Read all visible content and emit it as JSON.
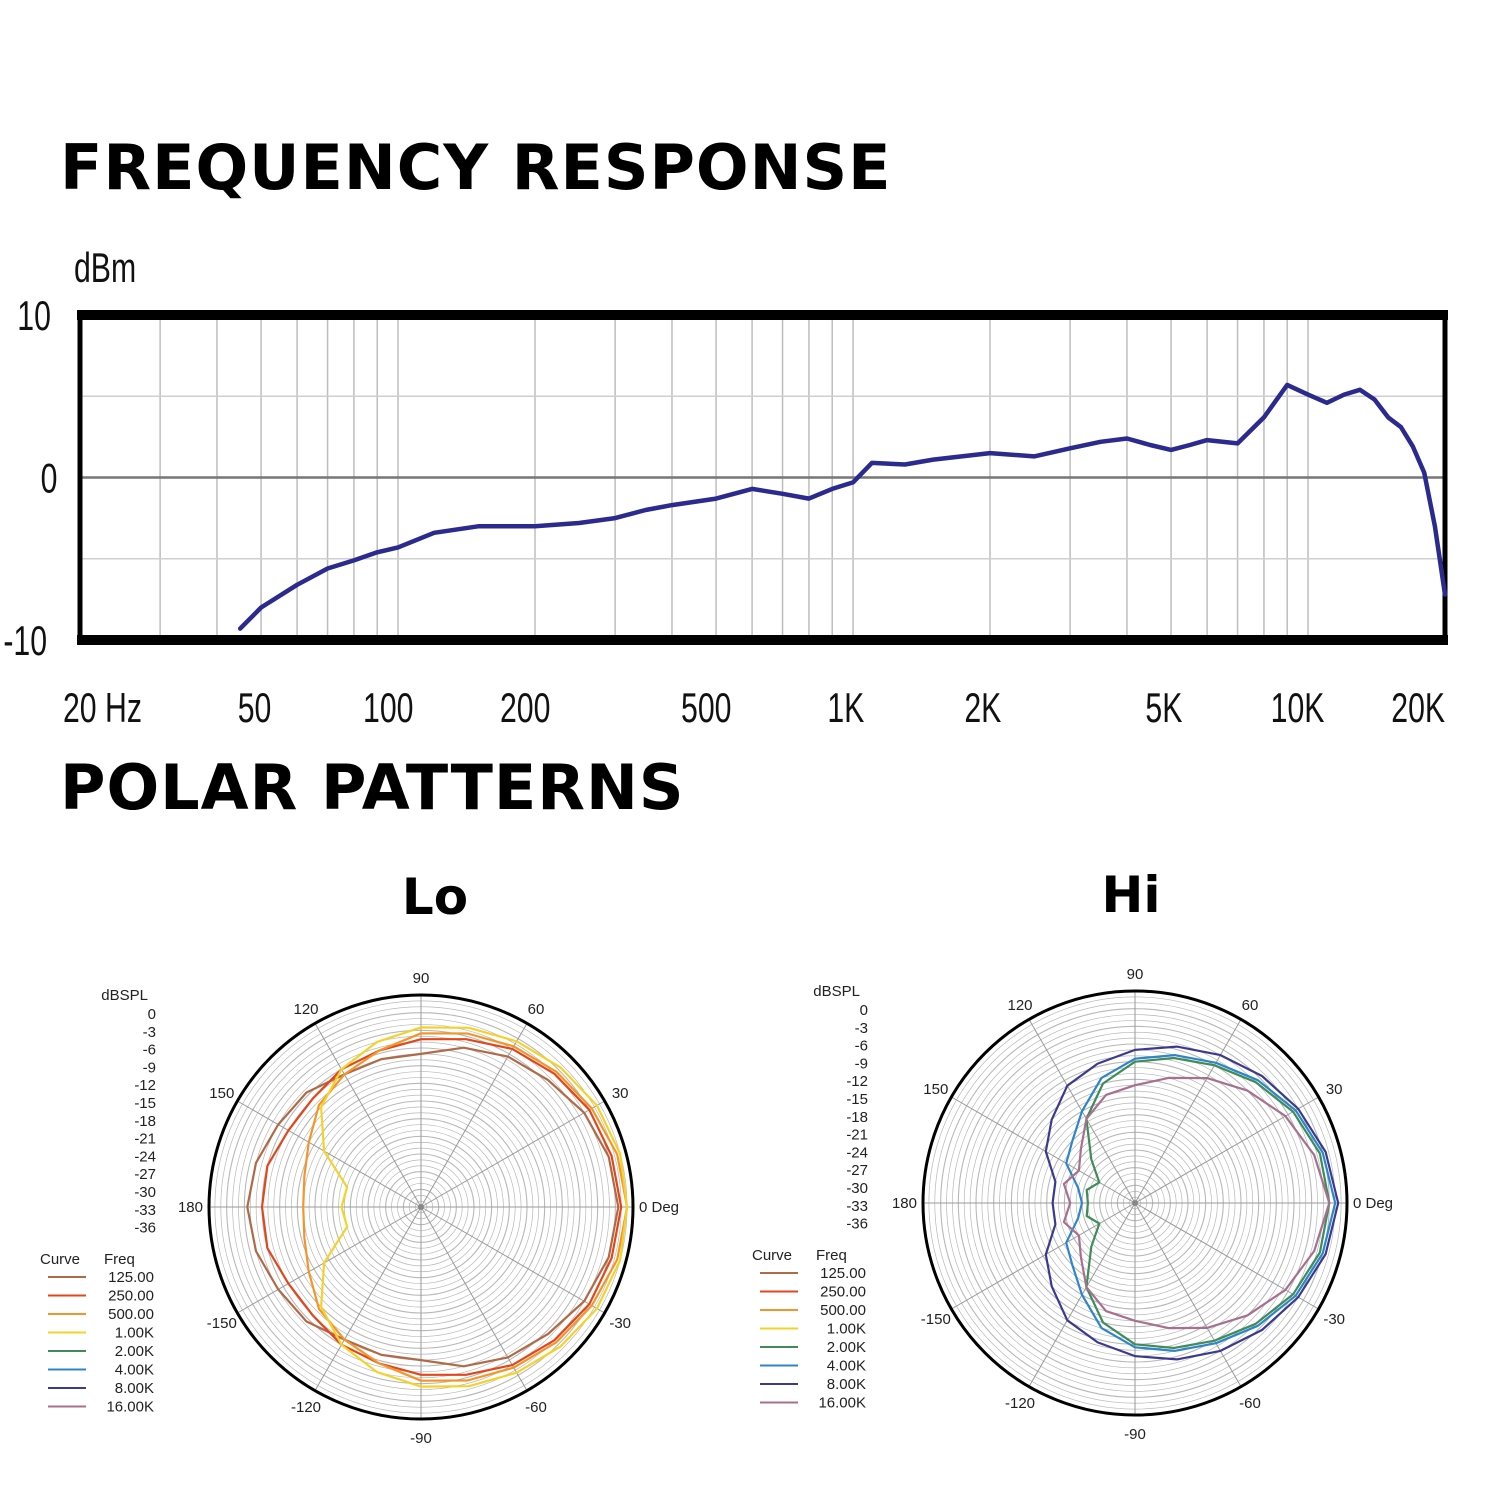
{
  "titles": {
    "frequency_response": "FREQUENCY RESPONSE",
    "polar_patterns": "POLAR PATTERNS",
    "lo": "Lo",
    "hi": "Hi"
  },
  "chart_data": [
    {
      "type": "line",
      "title": "FREQUENCY RESPONSE",
      "ylabel": "dBm",
      "xscale": "log",
      "xlim": [
        20,
        20000
      ],
      "ylim": [
        -10,
        10
      ],
      "x_tick_labels": [
        "20 Hz",
        "50",
        "100",
        "200",
        "500",
        "1K",
        "2K",
        "5K",
        "10K",
        "20K"
      ],
      "x_tick_values": [
        20,
        50,
        100,
        200,
        500,
        1000,
        2000,
        5000,
        10000,
        20000
      ],
      "y_tick_labels": [
        "10",
        "0",
        "-10"
      ],
      "y_tick_values": [
        10,
        0,
        -10
      ],
      "line_color": "#2b2a8f",
      "series": [
        {
          "x": [
            45,
            50,
            60,
            70,
            80,
            90,
            100,
            120,
            150,
            200,
            250,
            300,
            350,
            400,
            500,
            600,
            700,
            800,
            900,
            1000,
            1100,
            1300,
            1500,
            2000,
            2500,
            3000,
            3500,
            4000,
            4500,
            5000,
            5500,
            6000,
            7000,
            8000,
            9000,
            10000,
            11000,
            12000,
            13000,
            14000,
            15000,
            16000,
            17000,
            18000,
            19000,
            20000
          ],
          "y": [
            -9.3,
            -8.0,
            -6.6,
            -5.6,
            -5.1,
            -4.6,
            -4.3,
            -3.4,
            -3.0,
            -3.0,
            -2.8,
            -2.5,
            -2.0,
            -1.7,
            -1.3,
            -0.7,
            -1.0,
            -1.3,
            -0.7,
            -0.3,
            0.9,
            0.8,
            1.1,
            1.5,
            1.3,
            1.8,
            2.2,
            2.4,
            2.0,
            1.7,
            2.0,
            2.3,
            2.1,
            3.7,
            5.7,
            5.1,
            4.6,
            5.1,
            5.4,
            4.8,
            3.7,
            3.1,
            1.9,
            0.3,
            -3.0,
            -7.2
          ]
        }
      ]
    },
    {
      "type": "polar",
      "title": "Lo",
      "radial_label": "dBSPL",
      "radial_ticks": [
        "0",
        "-3",
        "-6",
        "-9",
        "-12",
        "-15",
        "-18",
        "-21",
        "-24",
        "-27",
        "-30",
        "-33",
        "-36"
      ],
      "angle_labels": [
        "0 Deg",
        "30",
        "60",
        "90",
        "120",
        "150",
        "180",
        "-150",
        "-120",
        "-90",
        "-60",
        "-30"
      ],
      "angle_values": [
        0,
        30,
        60,
        90,
        120,
        150,
        180,
        -150,
        -120,
        -90,
        -60,
        -30
      ],
      "legend": {
        "headers": [
          "Curve",
          "Freq"
        ],
        "entries": [
          {
            "freq": "125.00",
            "color": "#b06a47"
          },
          {
            "freq": "250.00",
            "color": "#e2471c"
          },
          {
            "freq": "500.00",
            "color": "#f4952a"
          },
          {
            "freq": "1.00K",
            "color": "#f5d22a"
          },
          {
            "freq": "2.00K",
            "color": "#3f8c5a"
          },
          {
            "freq": "4.00K",
            "color": "#2e86c8"
          },
          {
            "freq": "8.00K",
            "color": "#3b3a8f"
          },
          {
            "freq": "16.00K",
            "color": "#a8708f"
          }
        ]
      },
      "series": [
        {
          "name": "125.00",
          "color": "#b06a47",
          "angles": [
            0,
            15,
            30,
            45,
            60,
            75,
            90,
            105,
            120,
            135,
            150,
            165,
            180
          ],
          "levels": [
            -2.5,
            -3,
            -4,
            -5.5,
            -6.5,
            -8,
            -10,
            -10,
            -10,
            -8.5,
            -8,
            -7,
            -6.5
          ]
        },
        {
          "name": "250.00",
          "color": "#e2471c",
          "angles": [
            0,
            15,
            30,
            45,
            60,
            75,
            90,
            105,
            120,
            135,
            150,
            165,
            180
          ],
          "levels": [
            -2,
            -2.5,
            -3,
            -4,
            -5,
            -6.5,
            -7.5,
            -8.5,
            -9,
            -10,
            -10,
            -9,
            -9
          ]
        },
        {
          "name": "500.00",
          "color": "#f4952a",
          "angles": [
            0,
            15,
            30,
            45,
            60,
            75,
            90,
            105,
            120,
            135,
            150,
            165,
            180
          ],
          "levels": [
            -1,
            -1.5,
            -2.5,
            -3.5,
            -4.5,
            -5.5,
            -6.5,
            -8.5,
            -10,
            -11.5,
            -14,
            -15.5,
            -16
          ]
        },
        {
          "name": "1.00K",
          "color": "#f5d22a",
          "angles": [
            0,
            15,
            30,
            45,
            60,
            75,
            90,
            105,
            120,
            135,
            150,
            165,
            180
          ],
          "levels": [
            -1,
            -1,
            -1.5,
            -2.5,
            -3.5,
            -4.5,
            -5.5,
            -7,
            -9,
            -12,
            -17,
            -23,
            -22.5
          ]
        }
      ]
    },
    {
      "type": "polar",
      "title": "Hi",
      "radial_label": "dBSPL",
      "radial_ticks": [
        "0",
        "-3",
        "-6",
        "-9",
        "-12",
        "-15",
        "-18",
        "-21",
        "-24",
        "-27",
        "-30",
        "-33",
        "-36"
      ],
      "angle_labels": [
        "0 Deg",
        "30",
        "60",
        "90",
        "120",
        "150",
        "180",
        "-150",
        "-120",
        "-90",
        "-60",
        "-30"
      ],
      "angle_values": [
        0,
        30,
        60,
        90,
        120,
        150,
        180,
        -150,
        -120,
        -90,
        -60,
        -30
      ],
      "legend": {
        "headers": [
          "Curve",
          "Freq"
        ],
        "entries": [
          {
            "freq": "125.00",
            "color": "#b06a47"
          },
          {
            "freq": "250.00",
            "color": "#e2471c"
          },
          {
            "freq": "500.00",
            "color": "#f4952a"
          },
          {
            "freq": "1.00K",
            "color": "#f5d22a"
          },
          {
            "freq": "2.00K",
            "color": "#3f8c5a"
          },
          {
            "freq": "4.00K",
            "color": "#2e86c8"
          },
          {
            "freq": "8.00K",
            "color": "#3b3a8f"
          },
          {
            "freq": "16.00K",
            "color": "#a8708f"
          }
        ]
      },
      "series": [
        {
          "name": "2.00K",
          "color": "#3f8c5a",
          "angles": [
            0,
            15,
            30,
            45,
            60,
            75,
            90,
            105,
            120,
            135,
            150,
            165,
            180
          ],
          "levels": [
            -3,
            -3.5,
            -5,
            -7,
            -9,
            -10.5,
            -12,
            -15,
            -19.5,
            -25.5,
            -29,
            -27.5,
            -28
          ]
        },
        {
          "name": "4.00K",
          "color": "#2e86c8",
          "angles": [
            0,
            15,
            30,
            45,
            60,
            75,
            90,
            105,
            120,
            135,
            150,
            165,
            180
          ],
          "levels": [
            -2,
            -3,
            -4.5,
            -6.5,
            -8.5,
            -10,
            -11.5,
            -14,
            -18,
            -21,
            -22.5,
            -26,
            -27
          ]
        },
        {
          "name": "8.00K",
          "color": "#3b3a8f",
          "angles": [
            0,
            15,
            30,
            45,
            60,
            75,
            90,
            105,
            120,
            135,
            150,
            165,
            180
          ],
          "levels": [
            -1.5,
            -2.5,
            -4,
            -5.5,
            -7,
            -8.5,
            -10,
            -11.5,
            -13,
            -16,
            -18.5,
            -22,
            -22
          ]
        },
        {
          "name": "16.00K",
          "color": "#a8708f",
          "angles": [
            0,
            15,
            30,
            45,
            60,
            75,
            90,
            105,
            120,
            135,
            150,
            165,
            180
          ],
          "levels": [
            -3,
            -4.5,
            -6.5,
            -9,
            -11.5,
            -14,
            -16,
            -17,
            -19.5,
            -23,
            -25,
            -23.5,
            -25
          ]
        }
      ]
    }
  ]
}
